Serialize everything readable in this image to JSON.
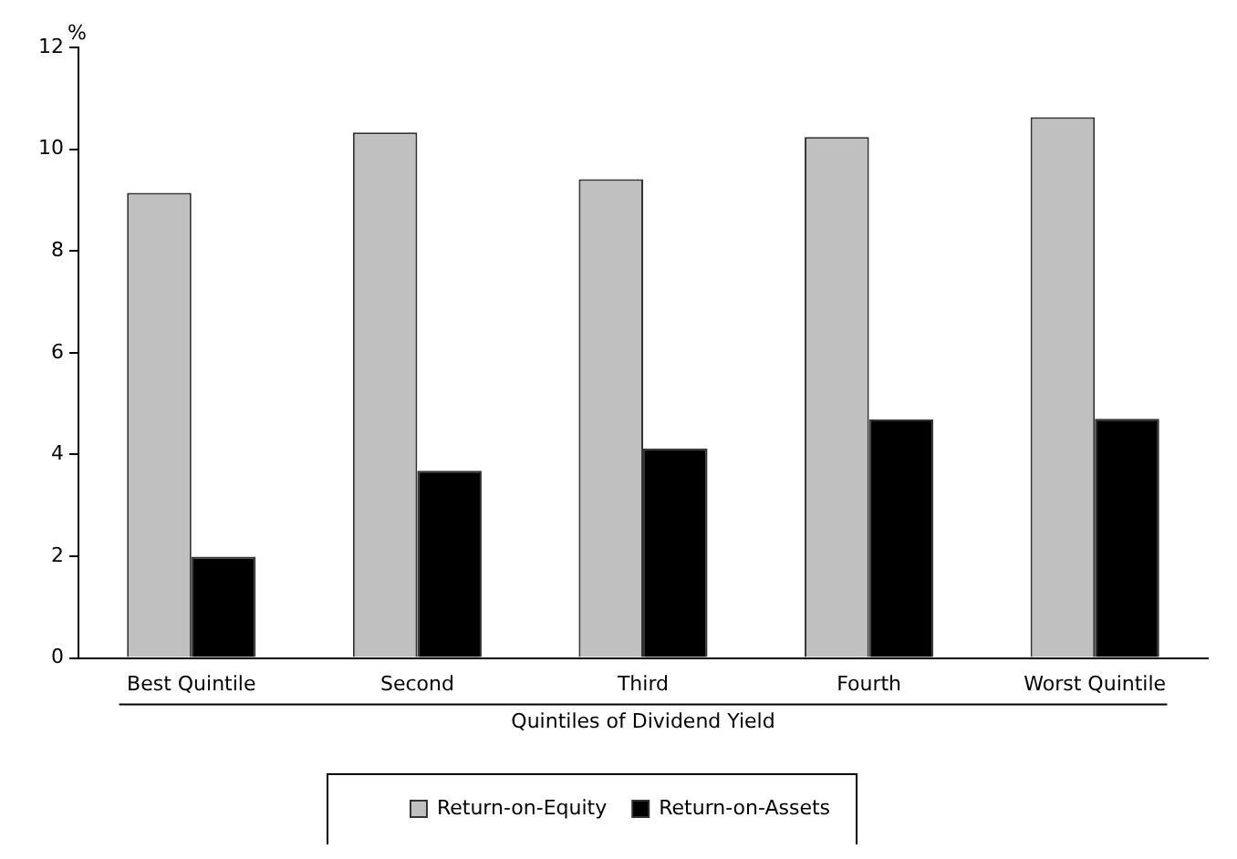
{
  "chart_data": {
    "type": "bar",
    "xlabel": "Quintiles of Dividend Yield",
    "ylabel": "%",
    "categories": [
      "Best Quintile",
      "Second",
      "Third",
      "Fourth",
      "Worst Quintile"
    ],
    "series": [
      {
        "name": "Return-on-Equity",
        "color": "#c0c0c0",
        "values": [
          9.14,
          10.33,
          9.41,
          10.24,
          10.63
        ]
      },
      {
        "name": "Return-on-Assets",
        "color": "#000000",
        "values": [
          1.99,
          3.68,
          4.12,
          4.69,
          4.7
        ]
      }
    ],
    "ylim": [
      0,
      12
    ],
    "yticks": [
      0,
      2,
      4,
      6,
      8,
      10,
      12
    ],
    "grid": false,
    "legend": "bottom"
  }
}
